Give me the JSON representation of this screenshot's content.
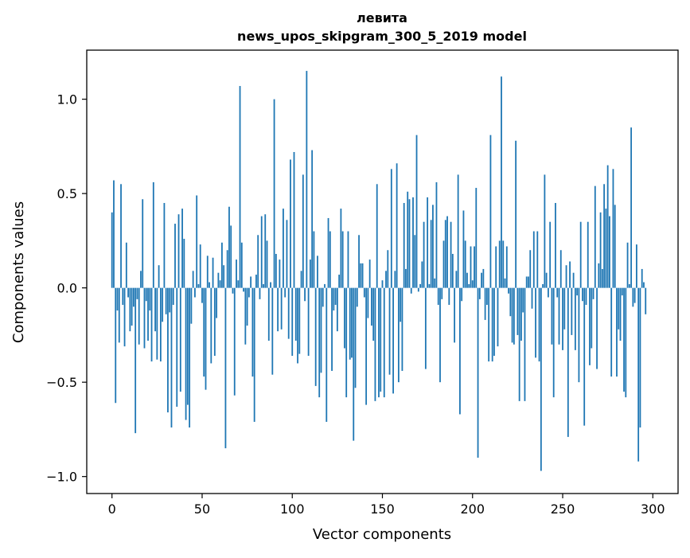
{
  "chart_data": {
    "type": "bar",
    "title": "левита",
    "subtitle": "news_upos_skipgram_300_5_2019 model",
    "xlabel": "Vector components",
    "ylabel": "Components values",
    "xlim": [
      -14,
      314
    ],
    "ylim": [
      -1.09,
      1.26
    ],
    "xticks": [
      0,
      50,
      100,
      150,
      200,
      250,
      300
    ],
    "xtick_labels": [
      "0",
      "50",
      "100",
      "150",
      "200",
      "250",
      "300"
    ],
    "yticks": [
      -1.0,
      -0.5,
      0.0,
      0.5,
      1.0
    ],
    "ytick_labels": [
      "−1.0",
      "−0.5",
      "0.0",
      "0.5",
      "1.0"
    ],
    "grid": false,
    "bar_color": "#1f77b4",
    "values": [
      0.4,
      0.57,
      -0.61,
      -0.12,
      -0.29,
      0.55,
      -0.09,
      -0.31,
      0.24,
      -0.05,
      -0.23,
      -0.2,
      -0.1,
      -0.77,
      -0.06,
      -0.3,
      0.09,
      0.47,
      -0.32,
      -0.07,
      -0.28,
      -0.12,
      -0.39,
      0.56,
      -0.23,
      -0.38,
      0.12,
      -0.39,
      -0.18,
      0.45,
      -0.14,
      -0.66,
      -0.13,
      -0.74,
      -0.09,
      0.34,
      -0.63,
      0.39,
      -0.55,
      0.42,
      0.26,
      -0.7,
      -0.62,
      -0.74,
      -0.19,
      0.09,
      -0.05,
      0.49,
      0.02,
      0.23,
      -0.08,
      -0.47,
      -0.54,
      0.17,
      0.03,
      -0.4,
      0.16,
      -0.36,
      -0.16,
      0.08,
      0.04,
      0.24,
      0.12,
      -0.85,
      0.2,
      0.43,
      0.33,
      -0.03,
      -0.57,
      0.15,
      0.04,
      1.07,
      0.24,
      -0.02,
      -0.3,
      -0.2,
      -0.05,
      0.06,
      -0.47,
      -0.71,
      0.07,
      0.28,
      -0.06,
      0.38,
      0.02,
      0.39,
      0.25,
      -0.28,
      0.03,
      -0.46,
      1.0,
      0.18,
      -0.23,
      0.15,
      -0.22,
      0.42,
      -0.05,
      0.36,
      -0.27,
      0.68,
      -0.36,
      0.72,
      -0.28,
      -0.4,
      -0.35,
      0.09,
      0.6,
      -0.07,
      1.15,
      -0.36,
      0.15,
      0.73,
      0.3,
      -0.52,
      0.17,
      -0.58,
      -0.45,
      -0.1,
      0.02,
      -0.71,
      0.37,
      0.3,
      -0.44,
      -0.12,
      -0.09,
      -0.23,
      0.07,
      0.42,
      0.3,
      -0.32,
      -0.58,
      0.3,
      -0.38,
      -0.37,
      -0.81,
      -0.53,
      -0.1,
      0.28,
      0.13,
      0.13,
      -0.05,
      -0.62,
      -0.16,
      0.15,
      -0.2,
      -0.28,
      -0.6,
      0.55,
      -0.58,
      -0.55,
      0.04,
      -0.58,
      0.09,
      0.2,
      -0.46,
      0.63,
      -0.56,
      0.09,
      0.66,
      -0.5,
      -0.18,
      -0.44,
      0.45,
      0.1,
      0.51,
      0.47,
      -0.03,
      0.48,
      0.28,
      0.81,
      -0.02,
      0.02,
      0.14,
      0.35,
      -0.43,
      0.48,
      0.02,
      0.36,
      0.44,
      0.05,
      0.56,
      -0.09,
      -0.5,
      -0.06,
      0.25,
      0.36,
      0.38,
      -0.09,
      0.35,
      0.18,
      -0.29,
      0.09,
      0.6,
      -0.67,
      -0.07,
      0.41,
      0.25,
      0.08,
      0.02,
      0.22,
      0.04,
      0.22,
      0.53,
      -0.9,
      -0.06,
      0.08,
      0.1,
      -0.17,
      -0.09,
      -0.39,
      0.81,
      -0.39,
      -0.36,
      0.22,
      -0.31,
      0.25,
      1.12,
      0.25,
      0.05,
      0.22,
      -0.03,
      -0.15,
      -0.29,
      -0.3,
      0.78,
      -0.25,
      -0.6,
      -0.28,
      -0.13,
      -0.6,
      0.06,
      0.06,
      0.2,
      -0.11,
      0.3,
      -0.37,
      0.3,
      -0.39,
      -0.97,
      0.02,
      0.6,
      0.08,
      -0.05,
      0.35,
      -0.3,
      -0.58,
      0.45,
      -0.05,
      -0.3,
      0.2,
      -0.33,
      -0.22,
      0.12,
      -0.79,
      0.14,
      -0.25,
      0.08,
      -0.33,
      -0.04,
      -0.5,
      0.35,
      -0.07,
      -0.73,
      -0.09,
      0.35,
      -0.41,
      -0.32,
      -0.06,
      0.54,
      -0.43,
      0.13,
      0.4,
      0.1,
      0.55,
      0.42,
      0.65,
      0.38,
      -0.47,
      0.63,
      0.44,
      -0.47,
      -0.22,
      -0.28,
      -0.04,
      -0.55,
      -0.58,
      0.24,
      0.02,
      0.85,
      -0.1,
      -0.08,
      0.23,
      -0.92,
      -0.74,
      0.1,
      0.03,
      -0.14
    ]
  }
}
